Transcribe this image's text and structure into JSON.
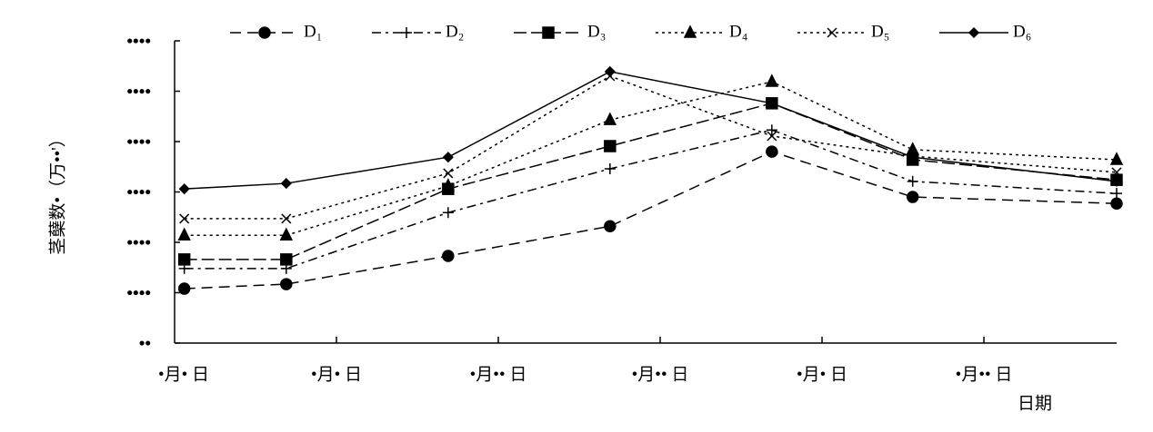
{
  "chart_data": {
    "type": "line",
    "y_label": "茎蘖数•（万••'）",
    "x_label": "日期",
    "xlim": [
      0,
      5.82
    ],
    "xticks": [
      {
        "value": 0,
        "label": "•月• 日"
      },
      {
        "value": 1,
        "label": "•月• 日"
      },
      {
        "value": 2,
        "label": "•月•• 日"
      },
      {
        "value": 3,
        "label": "•月•• 日"
      },
      {
        "value": 4,
        "label": "•月• 日"
      },
      {
        "value": 5,
        "label": "•月•• 日"
      }
    ],
    "ylim": [
      0,
      6
    ],
    "yticks": [
      {
        "value": 0,
        "label": "••"
      },
      {
        "value": 1,
        "label": "••••"
      },
      {
        "value": 2,
        "label": "••••"
      },
      {
        "value": 3,
        "label": "••••"
      },
      {
        "value": 4,
        "label": "••••"
      },
      {
        "value": 5,
        "label": "••••"
      },
      {
        "value": 6,
        "label": "••••"
      }
    ],
    "x": [
      0.06,
      0.69,
      1.69,
      2.69,
      3.69,
      4.56,
      5.82
    ],
    "legend": "top",
    "series": [
      {
        "name": "D₁",
        "color": "#000000",
        "style": "longdash",
        "marker": "circle",
        "values": [
          1.08,
          1.17,
          1.73,
          2.32,
          3.8,
          2.9,
          2.77
        ]
      },
      {
        "name": "D₂",
        "color": "#000000",
        "style": "dashdot",
        "marker": "plus",
        "values": [
          1.48,
          1.48,
          2.59,
          3.46,
          4.23,
          3.21,
          2.97
        ]
      },
      {
        "name": "D₃",
        "color": "#000000",
        "style": "dashed",
        "marker": "square",
        "values": [
          1.66,
          1.66,
          3.06,
          3.91,
          4.76,
          3.64,
          3.24
        ]
      },
      {
        "name": "D₄",
        "color": "#000000",
        "style": "dotted",
        "marker": "triangle",
        "values": [
          2.14,
          2.14,
          3.12,
          4.43,
          5.19,
          3.84,
          3.64
        ]
      },
      {
        "name": "D₅",
        "color": "#000000",
        "style": "dotted",
        "marker": "cross",
        "values": [
          2.47,
          2.47,
          3.37,
          5.3,
          4.11,
          3.71,
          3.39
        ]
      },
      {
        "name": "D₆",
        "color": "#000000",
        "style": "solid",
        "marker": "diamond",
        "values": [
          3.06,
          3.17,
          3.69,
          5.39,
          4.76,
          3.69,
          3.21
        ]
      }
    ]
  }
}
